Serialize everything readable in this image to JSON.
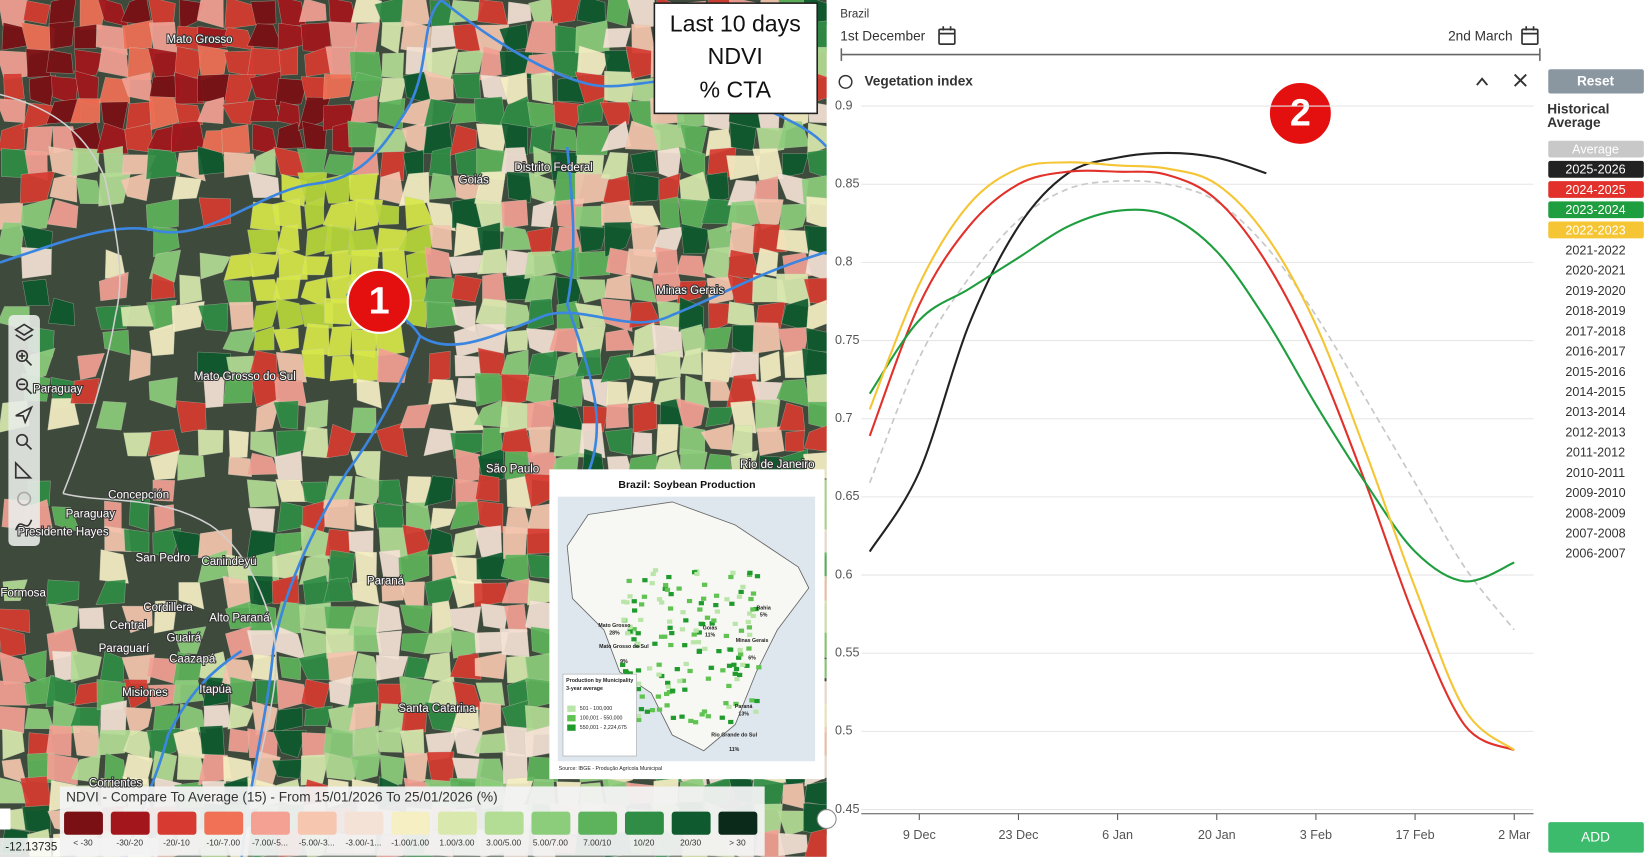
{
  "map": {
    "info_box": [
      "Last 10 days",
      "NDVI",
      "% CTA"
    ],
    "marker": "1",
    "places": [
      "Mato Grosso",
      "Goiás",
      "Distrito Federal",
      "Minas Gerais",
      "Mato Grosso do Sul",
      "Paraguay",
      "São Paulo",
      "Rio de Janeiro",
      "Concepción",
      "Paraguay",
      "Presidente Hayes",
      "San Pedro",
      "Canindeyú",
      "Paraná",
      "Formosa",
      "Cordillera",
      "Central",
      "Alto Paraná",
      "Paraguarí",
      "Guairá",
      "Caazapá",
      "Misiones",
      "Itapúa",
      "Santa Catarina",
      "Corrientes"
    ],
    "inset": {
      "title": "Brazil: Soybean Production",
      "labels": [
        "Mato Grosso",
        "28%",
        "Goiás",
        "11%",
        "Bahia",
        "5%",
        "Minas Gerais",
        "6%",
        "Mato Grosso do Sul",
        "9%",
        "Paraná",
        "13%",
        "Rio Grande do Sul",
        "11%"
      ],
      "legend_title": "Production by Municipality",
      "legend_subtitle": "3-year average",
      "classes": [
        "501 - 100,000",
        "100,001 - 550,000",
        "550,001 - 2,224,675"
      ],
      "source": "Source: IBGE - Produção Agrícola Municipal"
    },
    "legend": {
      "title": "NDVI - Compare To Average (15) - From 15/01/2026 To 25/01/2026 (%)",
      "classes": [
        {
          "label": "< -30",
          "color": "#7a0f14"
        },
        {
          "label": "-30/-20",
          "color": "#a3161c"
        },
        {
          "label": "-20/-10",
          "color": "#d63a30"
        },
        {
          "label": "-10/-7.00",
          "color": "#f07155"
        },
        {
          "label": "-7.00/-5...",
          "color": "#f4a093"
        },
        {
          "label": "-5.00/-3...",
          "color": "#f6c6af"
        },
        {
          "label": "-3.00/-1...",
          "color": "#f5e2d6"
        },
        {
          "label": "-1.00/1.00",
          "color": "#f6efc4"
        },
        {
          "label": "1.00/3.00",
          "color": "#d9e9ae"
        },
        {
          "label": "3.00/5.00",
          "color": "#b3dc94"
        },
        {
          "label": "5.00/7.00",
          "color": "#8ccd7b"
        },
        {
          "label": "7.00/10",
          "color": "#5db35b"
        },
        {
          "label": "10/20",
          "color": "#2f8d45"
        },
        {
          "label": "20/30",
          "color": "#0f5a2e"
        },
        {
          "label": "> 30",
          "color": "#0b2a19"
        }
      ]
    },
    "coordinates": "-12.13735"
  },
  "panel": {
    "region": "Brazil",
    "start": "1st December",
    "end": "2nd March",
    "title": "Vegetation index",
    "marker": "2",
    "reset": "Reset",
    "add": "ADD"
  },
  "chart_data": {
    "type": "line",
    "categories": [
      null,
      "9 Dec",
      null,
      "23 Dec",
      null,
      "6 Jan",
      null,
      "20 Jan",
      null,
      "3 Feb",
      null,
      "17 Feb",
      null,
      "2 Mar"
    ],
    "ylim": [
      0.45,
      0.9
    ],
    "yticks": [
      0.45,
      0.5,
      0.55,
      0.6,
      0.65,
      0.7,
      0.75,
      0.8,
      0.85,
      0.9
    ],
    "grid": true,
    "legend_title": "Historical Average",
    "series": [
      {
        "name": "Average",
        "color": "#c8c8c8",
        "dashed": true,
        "values": [
          0.659,
          0.739,
          0.79,
          0.827,
          0.847,
          0.852,
          0.85,
          0.839,
          0.81,
          0.766,
          0.713,
          0.659,
          0.605,
          0.565
        ]
      },
      {
        "name": "2025-2026",
        "color": "#222222",
        "values": [
          0.615,
          0.666,
          0.76,
          0.823,
          0.857,
          0.867,
          0.87,
          0.867,
          0.857,
          null,
          null,
          null,
          null,
          null
        ]
      },
      {
        "name": "2024-2025",
        "color": "#e2302a",
        "values": [
          0.689,
          0.773,
          0.823,
          0.85,
          0.858,
          0.858,
          0.856,
          0.84,
          0.8,
          0.739,
          0.659,
          0.572,
          0.504,
          0.488
        ]
      },
      {
        "name": "2023-2024",
        "color": "#1e9e3e",
        "values": [
          0.716,
          0.763,
          0.783,
          0.803,
          0.823,
          0.833,
          0.83,
          0.807,
          0.763,
          0.709,
          0.659,
          0.615,
          0.596,
          0.608
        ]
      },
      {
        "name": "2022-2023",
        "color": "#f5c533",
        "values": [
          0.706,
          0.786,
          0.837,
          0.86,
          0.864,
          0.862,
          0.86,
          0.85,
          0.817,
          0.76,
          0.679,
          0.592,
          0.514,
          0.488
        ]
      }
    ],
    "other_seasons": [
      "2021-2022",
      "2020-2021",
      "2019-2020",
      "2018-2019",
      "2017-2018",
      "2016-2017",
      "2015-2016",
      "2014-2015",
      "2013-2014",
      "2012-2013",
      "2011-2012",
      "2010-2011",
      "2009-2010",
      "2008-2009",
      "2007-2008",
      "2006-2007"
    ]
  }
}
